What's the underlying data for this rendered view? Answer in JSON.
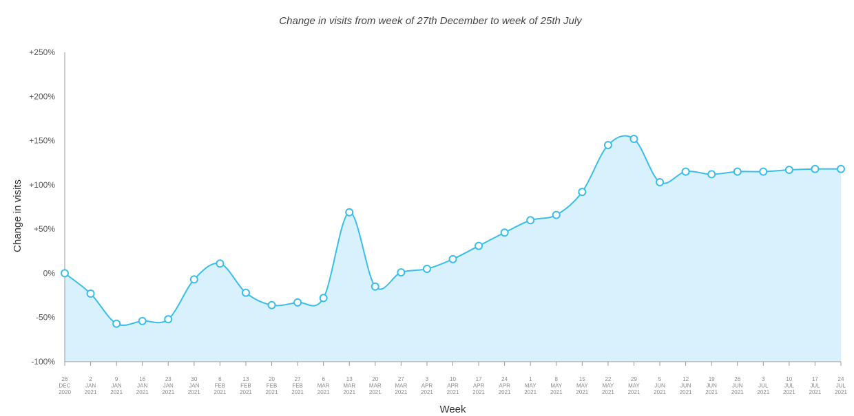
{
  "chart_data": {
    "type": "area",
    "title": "Change in visits from week of 27th December to week of 25th July",
    "xlabel": "Week",
    "ylabel": "Change in visits",
    "ylim": [
      -100,
      250
    ],
    "yticks": [
      250,
      200,
      150,
      100,
      50,
      0,
      -50,
      -100
    ],
    "ytick_labels": [
      "+250%",
      "+200%",
      "+150%",
      "+100%",
      "+50%",
      "0%",
      "-50%",
      "-100%"
    ],
    "categories": [
      [
        "26",
        "DEC",
        "2020"
      ],
      [
        "2",
        "JAN",
        "2021"
      ],
      [
        "9",
        "JAN",
        "2021"
      ],
      [
        "16",
        "JAN",
        "2021"
      ],
      [
        "23",
        "JAN",
        "2021"
      ],
      [
        "30",
        "JAN",
        "2021"
      ],
      [
        "6",
        "FEB",
        "2021"
      ],
      [
        "13",
        "FEB",
        "2021"
      ],
      [
        "20",
        "FEB",
        "2021"
      ],
      [
        "27",
        "FEB",
        "2021"
      ],
      [
        "6",
        "MAR",
        "2021"
      ],
      [
        "13",
        "MAR",
        "2021"
      ],
      [
        "20",
        "MAR",
        "2021"
      ],
      [
        "27",
        "MAR",
        "2021"
      ],
      [
        "3",
        "APR",
        "2021"
      ],
      [
        "10",
        "APR",
        "2021"
      ],
      [
        "17",
        "APR",
        "2021"
      ],
      [
        "24",
        "APR",
        "2021"
      ],
      [
        "1",
        "MAY",
        "2021"
      ],
      [
        "8",
        "MAY",
        "2021"
      ],
      [
        "15",
        "MAY",
        "2021"
      ],
      [
        "22",
        "MAY",
        "2021"
      ],
      [
        "29",
        "MAY",
        "2021"
      ],
      [
        "5",
        "JUN",
        "2021"
      ],
      [
        "12",
        "JUN",
        "2021"
      ],
      [
        "19",
        "JUN",
        "2021"
      ],
      [
        "26",
        "JUN",
        "2021"
      ],
      [
        "3",
        "JUL",
        "2021"
      ],
      [
        "10",
        "JUL",
        "2021"
      ],
      [
        "17",
        "JUL",
        "2021"
      ],
      [
        "24",
        "JUL",
        "2021"
      ]
    ],
    "series": [
      {
        "name": "Change in visits",
        "values": [
          0,
          -23,
          -57,
          -54,
          -52,
          -7,
          11,
          -22,
          -36,
          -33,
          -28,
          69,
          -15,
          1,
          5,
          16,
          31,
          46,
          60,
          66,
          92,
          145,
          152,
          103,
          115,
          112,
          115,
          115,
          117,
          118,
          118
        ]
      }
    ],
    "grid": false,
    "legend": "none",
    "line_color": "#3bbdea",
    "fill_color": "#d8f1fc"
  }
}
